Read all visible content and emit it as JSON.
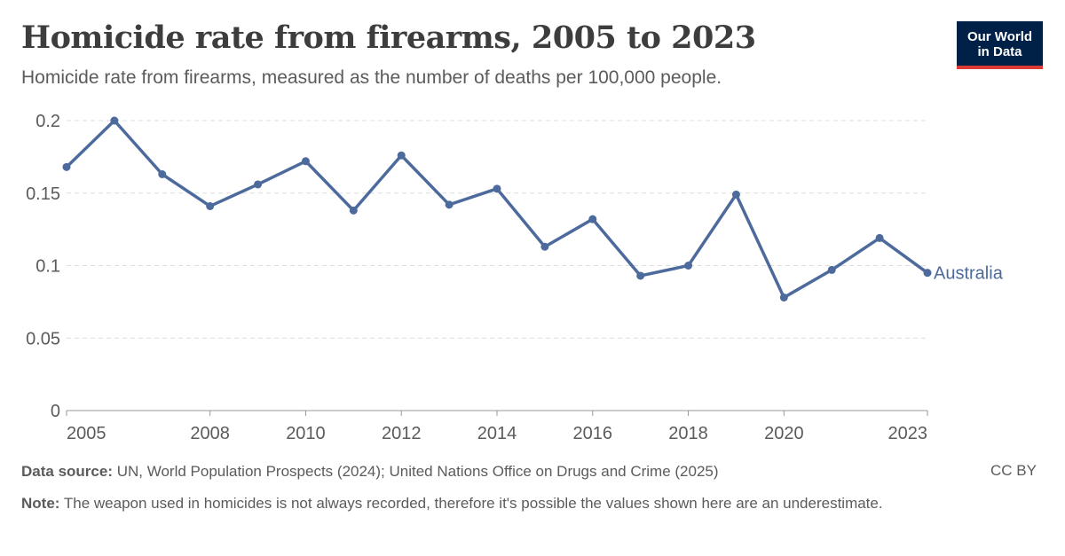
{
  "header": {
    "title": "Homicide rate from firearms, 2005 to 2023",
    "subtitle": "Homicide rate from firearms, measured as the number of deaths per 100,000 people."
  },
  "logo": {
    "line1": "Our World",
    "line2": "in Data"
  },
  "footer": {
    "source_label": "Data source:",
    "source_text": "UN, World Population Prospects (2024); United Nations Office on Drugs and Crime (2025)",
    "note_label": "Note:",
    "note_text": "The weapon used in homicides is not always recorded, therefore it's possible the values shown here are an underestimate.",
    "license": "CC BY"
  },
  "colors": {
    "series": "#4c6a9c",
    "grid": "#dddddd",
    "axis": "#999999",
    "text": "#5b5b5b"
  },
  "chart_data": {
    "type": "line",
    "x": [
      2005,
      2006,
      2007,
      2008,
      2009,
      2010,
      2011,
      2012,
      2013,
      2014,
      2015,
      2016,
      2017,
      2018,
      2019,
      2020,
      2021,
      2022,
      2023
    ],
    "series": [
      {
        "name": "Australia",
        "values": [
          0.168,
          0.2,
          0.163,
          0.141,
          0.156,
          0.172,
          0.138,
          0.176,
          0.142,
          0.153,
          0.113,
          0.132,
          0.093,
          0.1,
          0.149,
          0.078,
          0.097,
          0.119,
          0.095
        ]
      }
    ],
    "xlim": [
      2005,
      2023
    ],
    "ylim": [
      0,
      0.2
    ],
    "xticks": [
      2005,
      2008,
      2010,
      2012,
      2014,
      2016,
      2018,
      2020,
      2023
    ],
    "yticks": [
      0,
      0.05,
      0.1,
      0.15,
      0.2
    ],
    "ytick_labels": [
      "0",
      "0.05",
      "0.1",
      "0.15",
      "0.2"
    ],
    "grid": "horizontal dashed",
    "legend": "end-of-line label"
  }
}
